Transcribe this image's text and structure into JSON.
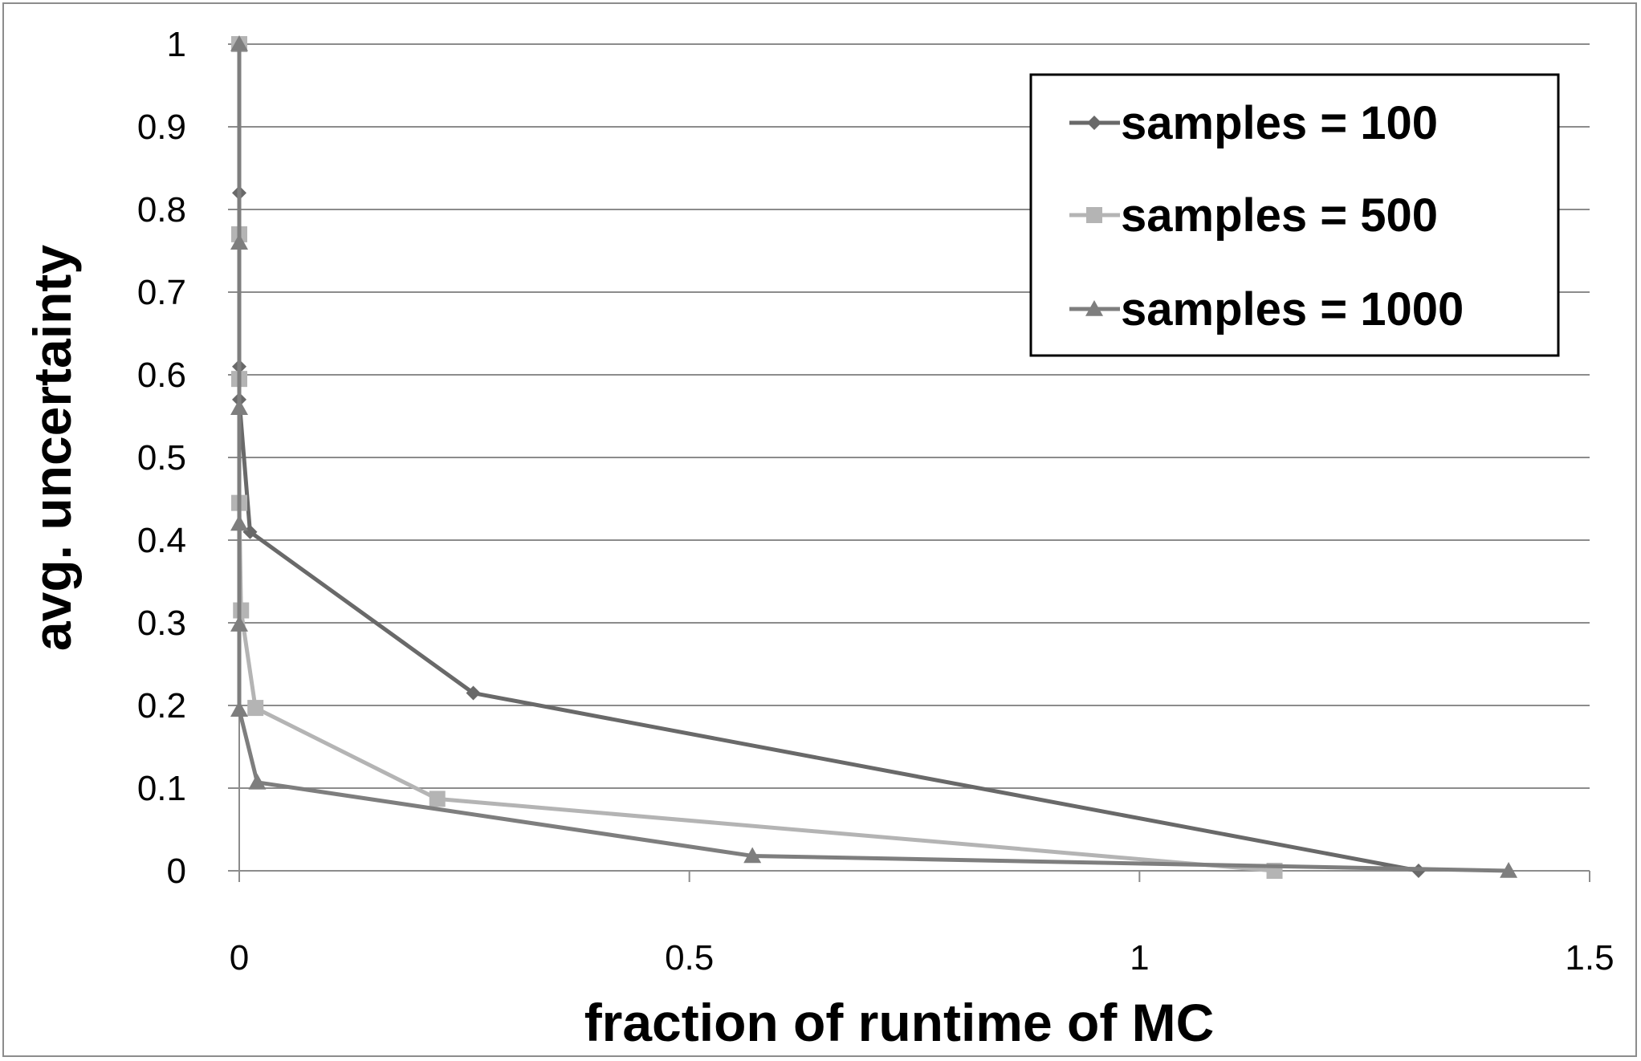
{
  "chart_data": {
    "type": "line",
    "title": "",
    "xlabel": "fraction of runtime of MC",
    "ylabel": "avg. uncertainty",
    "xlim": [
      0,
      1.5
    ],
    "ylim": [
      0,
      1
    ],
    "x_ticks": [
      "0",
      "0.5",
      "1",
      "1.5"
    ],
    "y_ticks": [
      "0",
      "0.1",
      "0.2",
      "0.3",
      "0.4",
      "0.5",
      "0.6",
      "0.7",
      "0.8",
      "0.9",
      "1"
    ],
    "grid": "horizontal",
    "legend_position": "top-right",
    "series": [
      {
        "name": "samples = 100",
        "marker": "diamond",
        "color": "#696969",
        "x": [
          0.0,
          0.0,
          0.0,
          0.0,
          0.012,
          0.26,
          1.31
        ],
        "y": [
          1.0,
          0.82,
          0.61,
          0.57,
          0.41,
          0.215,
          0.0
        ]
      },
      {
        "name": "samples = 500",
        "marker": "square",
        "color": "#b4b4b4",
        "x": [
          0.0,
          0.0,
          0.0,
          0.0,
          0.002,
          0.018,
          0.22,
          1.15
        ],
        "y": [
          1.0,
          0.77,
          0.595,
          0.445,
          0.315,
          0.197,
          0.087,
          0.0
        ]
      },
      {
        "name": "samples = 1000",
        "marker": "triangle",
        "color": "#7e7e7e",
        "x": [
          0.0,
          0.0,
          0.0,
          0.0,
          0.0,
          0.0,
          0.02,
          0.57,
          1.41
        ],
        "y": [
          1.0,
          0.76,
          0.56,
          0.42,
          0.298,
          0.195,
          0.107,
          0.018,
          0.0
        ]
      }
    ]
  }
}
